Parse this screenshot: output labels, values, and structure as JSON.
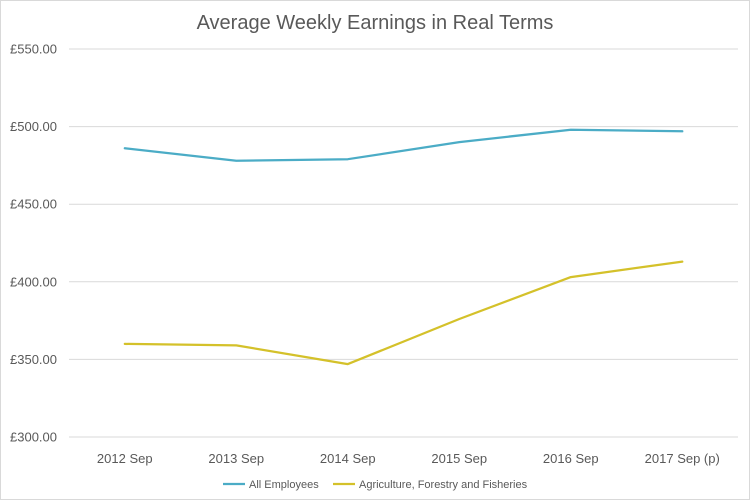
{
  "chart_data": {
    "type": "line",
    "title": "Average Weekly Earnings in Real Terms",
    "xlabel": "",
    "ylabel": "",
    "categories": [
      "2012 Sep",
      "2013 Sep",
      "2014 Sep",
      "2015 Sep",
      "2016 Sep",
      "2017 Sep (p)"
    ],
    "y_tick_labels": [
      "£300.00",
      "£350.00",
      "£400.00",
      "£450.00",
      "£500.00",
      "£550.00"
    ],
    "ylim": [
      300,
      550
    ],
    "y_ticks": [
      300,
      350,
      400,
      450,
      500,
      550
    ],
    "grid": true,
    "legend_position": "bottom",
    "series": [
      {
        "name": "All Employees",
        "color": "#4bacc6",
        "values": [
          486,
          478,
          479,
          490,
          498,
          497
        ]
      },
      {
        "name": "Agriculture, Forestry and Fisheries",
        "color": "#d4c12a",
        "values": [
          360,
          359,
          347,
          376,
          403,
          413
        ]
      }
    ]
  }
}
